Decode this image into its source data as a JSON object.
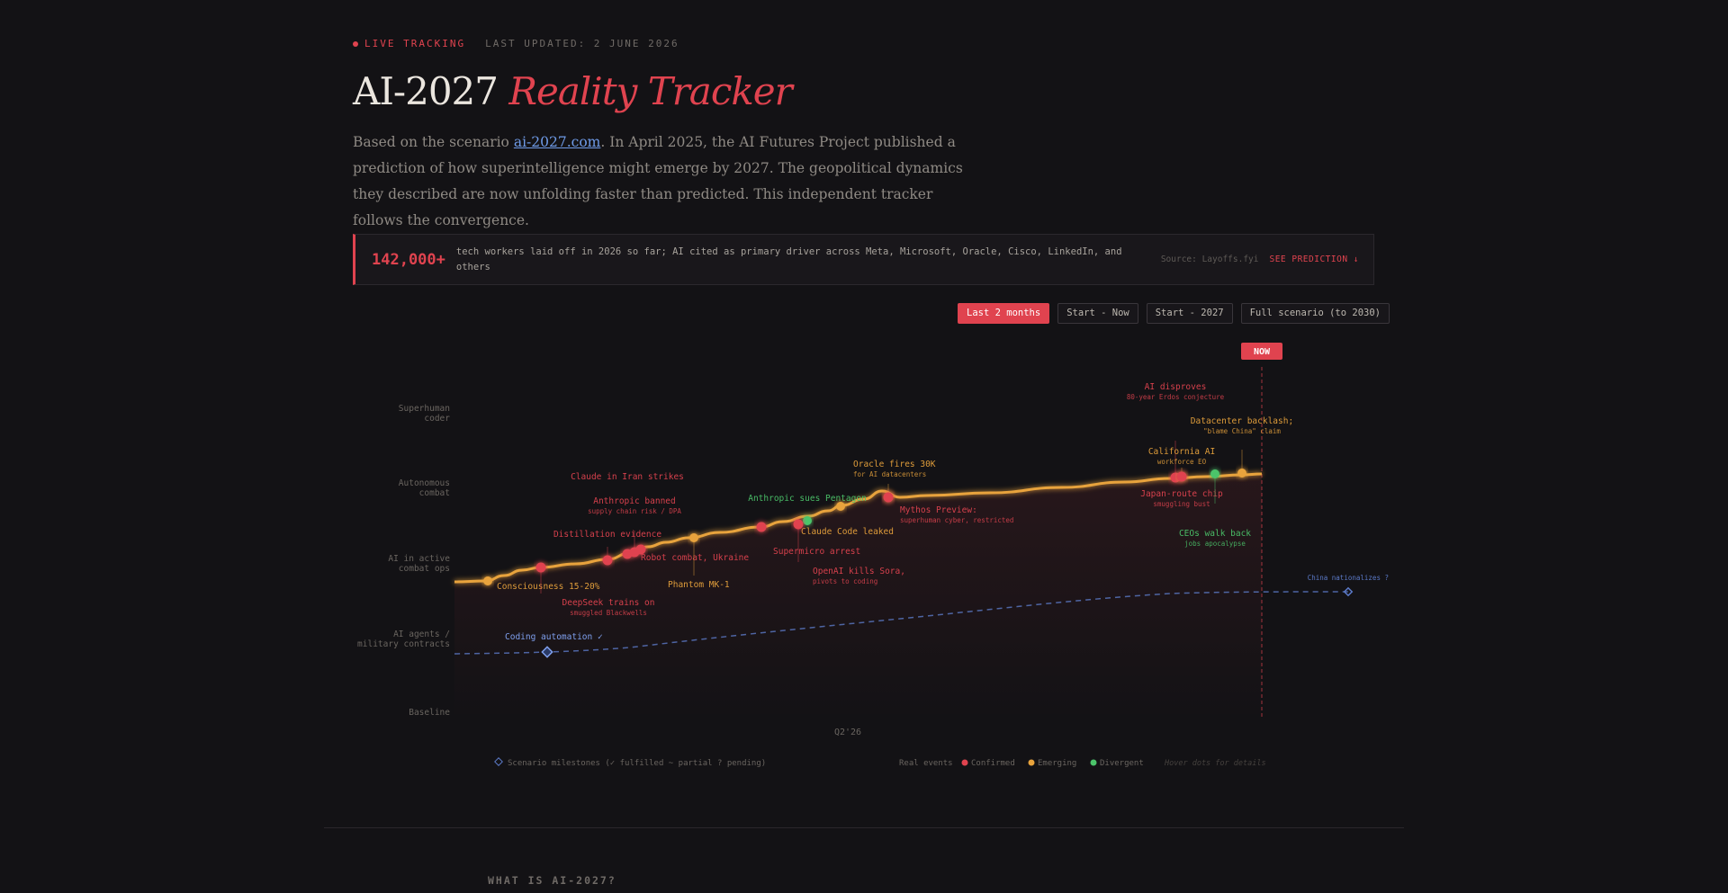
{
  "header": {
    "live_label": "LIVE TRACKING",
    "updated": "LAST UPDATED: 2 JUNE 2026",
    "title_main": "AI-2027",
    "title_accent": "Reality Tracker",
    "intro_before": "Based on the scenario ",
    "intro_link": "ai-2027.com",
    "intro_after": ". In April 2025, the AI Futures Project published a prediction of how superintelligence might emerge by 2027. The geopolitical dynamics they described are now unfolding faster than predicted. This independent tracker follows the convergence."
  },
  "stat": {
    "number": "142,000+",
    "text": "tech workers laid off in 2026 so far; AI cited as primary driver across Meta, Microsoft, Oracle, Cisco, LinkedIn, and others",
    "source": "Source: Layoffs.fyi",
    "link": "SEE PREDICTION ↓"
  },
  "ranges": [
    {
      "label": "Last 2 months",
      "active": true
    },
    {
      "label": "Start - Now",
      "active": false
    },
    {
      "label": "Start - 2027",
      "active": false
    },
    {
      "label": "Full scenario (to 2030)",
      "active": false
    }
  ],
  "chart_data": {
    "type": "line",
    "now_label": "NOW",
    "x_tick": "Q2'26",
    "y_levels": [
      "Superhuman coder",
      "Autonomous combat",
      "AI in active combat ops",
      "AI agents / military contracts",
      "Baseline"
    ],
    "colors": {
      "confirmed": "#e0434f",
      "emerging": "#e8a33c",
      "divergent": "#4bc46a",
      "scenario": "#5b79c7",
      "line": "#e8a33c"
    },
    "events": [
      {
        "label": "Consciousness 15-20%",
        "sub": "",
        "status": "emerging"
      },
      {
        "label": "DeepSeek trains on",
        "sub": "smuggled Blackwells",
        "status": "confirmed"
      },
      {
        "label": "Distillation evidence",
        "sub": "",
        "status": "confirmed"
      },
      {
        "label": "Claude in Iran strikes",
        "sub": "",
        "status": "confirmed"
      },
      {
        "label": "Anthropic banned",
        "sub": "supply chain risk / DPA",
        "status": "confirmed"
      },
      {
        "label": "Robot combat, Ukraine",
        "sub": "",
        "status": "confirmed"
      },
      {
        "label": "Phantom MK-1",
        "sub": "",
        "status": "emerging"
      },
      {
        "label": "Supermicro arrest",
        "sub": "",
        "status": "confirmed"
      },
      {
        "label": "Anthropic sues Pentagon",
        "sub": "",
        "status": "divergent"
      },
      {
        "label": "Claude Code leaked",
        "sub": "",
        "status": "emerging"
      },
      {
        "label": "OpenAI kills Sora,",
        "sub": "pivots to coding",
        "status": "confirmed"
      },
      {
        "label": "Oracle fires 30K",
        "sub": "for AI datacenters",
        "status": "emerging"
      },
      {
        "label": "Mythos Preview:",
        "sub": "superhuman cyber, restricted",
        "status": "confirmed"
      },
      {
        "label": "AI disproves",
        "sub": "80-year Erdos conjecture",
        "status": "confirmed"
      },
      {
        "label": "California AI",
        "sub": "workforce EO",
        "status": "emerging"
      },
      {
        "label": "Japan-route chip",
        "sub": "smuggling bust",
        "status": "confirmed"
      },
      {
        "label": "CEOs walk back",
        "sub": "jobs apocalypse",
        "status": "divergent"
      },
      {
        "label": "Datacenter backlash;",
        "sub": "\"blame China\" claim",
        "status": "emerging"
      }
    ],
    "milestones": [
      {
        "label": "Coding automation ✓",
        "status": "fulfilled"
      },
      {
        "label": "China nationalizes ?",
        "status": "pending"
      }
    ],
    "legend": {
      "scenario": "Scenario milestones (✓ fulfilled ~ partial ? pending)",
      "real_events": "Real events",
      "confirmed": "Confirmed",
      "emerging": "Emerging",
      "divergent": "Divergent",
      "hint": "Hover dots for details"
    }
  },
  "section": {
    "title": "WHAT IS AI-2027?"
  }
}
